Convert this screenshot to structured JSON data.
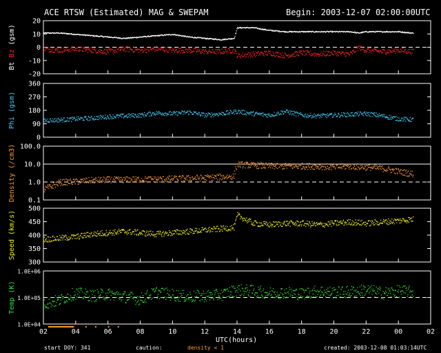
{
  "header": {
    "title": "ACE RTSW (Estimated) MAG & SWEPAM",
    "begin": "Begin: 2003-12-07 02:00:00UTC"
  },
  "footer": {
    "start_doy": "start DOY: 341",
    "caution_label": "caution:",
    "caution_note": "density < 1",
    "created": "created: 2003-12-08 01:03:14UTC"
  },
  "colors": {
    "background": "#000000",
    "bt": "#ffffff",
    "bz": "#ff2020",
    "phi": "#40c8f0",
    "density": "#ff9a30",
    "speed": "#f0f020",
    "temp": "#30e030",
    "caution": "#ff9a30"
  },
  "chart_data": [
    {
      "type": "line",
      "panel": "mag",
      "ylabel_parts": [
        "Bt",
        "Bz",
        "(gsm)"
      ],
      "yticks": [
        20,
        10,
        0,
        -10,
        -20
      ],
      "ylim": [
        -20,
        20
      ],
      "dashed_ref": 0,
      "series": [
        {
          "name": "Bt",
          "x": [
            2,
            3,
            4,
            5,
            6,
            7,
            8,
            9,
            10,
            11,
            12,
            13,
            13.8,
            14,
            15,
            16,
            17,
            18,
            19,
            20,
            21,
            21.5,
            22,
            23,
            24,
            24.8
          ],
          "values": [
            11,
            11,
            10,
            9,
            8,
            7,
            8,
            9,
            10,
            8,
            7,
            6,
            7,
            15,
            15,
            13,
            12,
            12,
            12,
            12,
            12,
            11,
            12,
            12,
            12,
            11
          ]
        },
        {
          "name": "Bz",
          "x": [
            2,
            3,
            4,
            5,
            6,
            7,
            8,
            9,
            10,
            11,
            12,
            13,
            13.8,
            14,
            15,
            16,
            17,
            18,
            19,
            20,
            21,
            21.5,
            22,
            23,
            24,
            24.8
          ],
          "values": [
            -1,
            -2,
            -1,
            -2,
            -3,
            -1,
            -2,
            -1,
            -2,
            -2,
            -3,
            -3,
            -2,
            -6,
            -5,
            -4,
            -6,
            -4,
            -5,
            -4,
            -5,
            0,
            -2,
            -3,
            -2,
            -3
          ]
        }
      ]
    },
    {
      "type": "scatter",
      "panel": "phi",
      "ylabel": "Phi (gsm)",
      "yticks": [
        360,
        270,
        180,
        90,
        0
      ],
      "ylim": [
        0,
        360
      ],
      "x": [
        2,
        3,
        4,
        5,
        6,
        7,
        8,
        9,
        10,
        11,
        12,
        13,
        14,
        15,
        16,
        17,
        18,
        19,
        20,
        21,
        22,
        23,
        24,
        24.8
      ],
      "values": [
        115,
        118,
        125,
        130,
        140,
        145,
        150,
        165,
        160,
        170,
        150,
        160,
        175,
        160,
        150,
        175,
        150,
        145,
        150,
        155,
        160,
        145,
        125,
        120
      ]
    },
    {
      "type": "scatter",
      "panel": "density",
      "ylabel": "Density (/cm3)",
      "yticks": [
        "100.0",
        "10.0",
        "1.0",
        "0.1"
      ],
      "ylim": [
        0.1,
        100
      ],
      "log_scale": true,
      "dashed_ref": 1.0,
      "x": [
        2,
        2.5,
        3,
        4,
        5,
        6,
        7,
        8,
        9,
        10,
        11,
        12,
        13,
        13.8,
        14,
        15,
        16,
        17,
        18,
        19,
        20,
        21,
        22,
        23,
        24,
        24.8
      ],
      "values": [
        0.4,
        0.6,
        1.0,
        1.1,
        1.3,
        1.4,
        1.4,
        1.5,
        1.5,
        1.6,
        1.7,
        1.8,
        2.0,
        2.2,
        10,
        9,
        8,
        8,
        8,
        8,
        7,
        8,
        7,
        6,
        4,
        3
      ]
    },
    {
      "type": "scatter",
      "panel": "speed",
      "ylabel": "Speed (km/s)",
      "yticks": [
        500,
        450,
        400,
        350,
        300
      ],
      "ylim": [
        300,
        500
      ],
      "x": [
        2,
        3,
        4,
        5,
        6,
        7,
        8,
        9,
        10,
        11,
        12,
        13,
        13.8,
        14,
        15,
        16,
        17,
        18,
        19,
        20,
        21,
        22,
        23,
        24,
        24.8
      ],
      "values": [
        385,
        390,
        395,
        405,
        410,
        415,
        410,
        405,
        410,
        415,
        420,
        425,
        430,
        475,
        445,
        440,
        445,
        445,
        440,
        445,
        450,
        445,
        450,
        455,
        460
      ]
    },
    {
      "type": "scatter",
      "panel": "temp",
      "ylabel": "Temp (K)",
      "yticks": [
        "1.0E+06",
        "1.0E+05",
        "1.0E+04"
      ],
      "ylim": [
        10000,
        1000000
      ],
      "log_scale": true,
      "dashed_ref": 100000,
      "x": [
        2,
        3,
        4,
        5,
        6,
        7,
        8,
        9,
        10,
        11,
        12,
        13,
        14,
        15,
        16,
        17,
        18,
        19,
        20,
        21,
        22,
        23,
        24,
        24.8
      ],
      "values": [
        60000,
        80000,
        150000,
        120000,
        140000,
        110000,
        90000,
        160000,
        130000,
        110000,
        120000,
        130000,
        200000,
        180000,
        150000,
        160000,
        140000,
        180000,
        160000,
        170000,
        200000,
        150000,
        180000,
        170000
      ]
    }
  ],
  "xaxis": {
    "ticks": [
      "02",
      "04",
      "06",
      "08",
      "10",
      "12",
      "14",
      "16",
      "18",
      "20",
      "22",
      "00",
      "02"
    ],
    "label": "UTC(hours)",
    "range": [
      2,
      26
    ]
  }
}
